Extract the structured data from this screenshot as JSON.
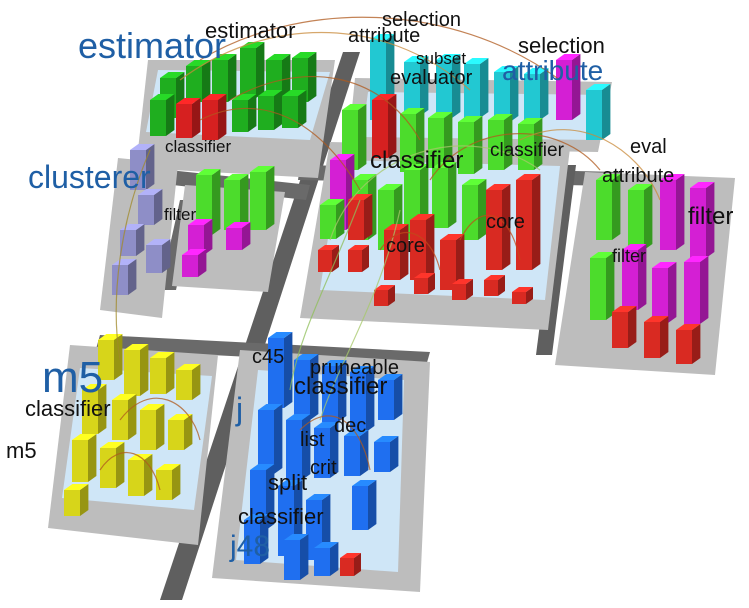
{
  "colors": {
    "background": "#ffffff",
    "street": "#5f5f5f",
    "district_floor": "#bdbdbd",
    "building_base": "#cfe6f7",
    "label_large": "#1f5fa5",
    "label_small": "#111111",
    "edge": "#b05a1e",
    "pkg_estimator": "#1fae1f",
    "pkg_estimator_accent": "#d62020",
    "pkg_clusterer": "#8e8ec7",
    "pkg_attribute_selection": "#22c8d2",
    "pkg_classifier": "#4cdc2c",
    "pkg_filter": "#d41fd4",
    "pkg_core": "#d92a22",
    "pkg_m5": "#d7d51a",
    "pkg_j48": "#1f6ff0"
  },
  "labels": {
    "estimator_large": "estimator",
    "estimator_small": "estimator",
    "classifier_a": "classifier",
    "clusterer_large": "clusterer",
    "filter_a": "filter",
    "attribute_small": "attribute",
    "selection_a": "selection",
    "subset": "subset",
    "evaluator": "evaluator",
    "selection_b": "selection",
    "attribute_large": "attribute",
    "classifier_large": "classifier",
    "classifier_b": "classifier",
    "core_a": "core",
    "core_b": "core",
    "eval": "eval",
    "attribute_c": "attribute",
    "filter_large": "filter",
    "filter_b": "filter",
    "m5_large": "m5",
    "classifier_m5": "classifier",
    "m5_small": "m5",
    "c45": "c45",
    "pruneable": "pruneable",
    "classifier_j48": "classifier",
    "j_partial": "j",
    "dec": "dec",
    "list": "list",
    "crit": "crit",
    "split": "split",
    "classifier_j48b": "classifier",
    "j48_large": "j48"
  }
}
